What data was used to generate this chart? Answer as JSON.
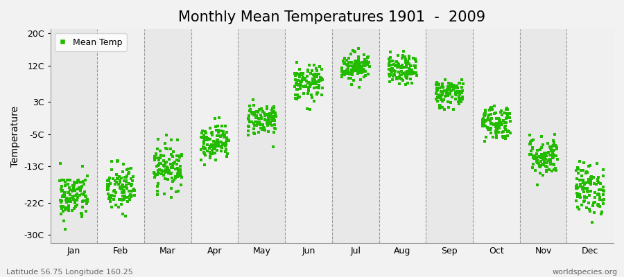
{
  "title": "Monthly Mean Temperatures 1901  -  2009",
  "ylabel": "Temperature",
  "xlabel_months": [
    "Jan",
    "Feb",
    "Mar",
    "Apr",
    "May",
    "Jun",
    "Jul",
    "Aug",
    "Sep",
    "Oct",
    "Nov",
    "Dec"
  ],
  "yticks": [
    -30,
    -22,
    -13,
    -5,
    3,
    12,
    20
  ],
  "ytick_labels": [
    "-30C",
    "-22C",
    "-13C",
    "-5C",
    "3C",
    "12C",
    "20C"
  ],
  "ylim": [
    -32,
    21
  ],
  "dot_color": "#22bb00",
  "dot_size": 7,
  "n_years": 109,
  "monthly_means": [
    -20.5,
    -18.5,
    -13.0,
    -6.8,
    -1.2,
    7.5,
    11.8,
    10.8,
    5.2,
    -2.0,
    -10.5,
    -18.5
  ],
  "monthly_stds": [
    3.0,
    3.2,
    2.8,
    2.2,
    2.0,
    2.2,
    1.8,
    1.8,
    1.8,
    2.2,
    2.5,
    3.2
  ],
  "background_color": "#f2f2f2",
  "plot_bg_color": "#ebebeb",
  "stripe_color_odd": "#e8e8e8",
  "stripe_color_even": "#f0f0f0",
  "vline_color": "#999999",
  "subtitle_left": "Latitude 56.75 Longitude 160.25",
  "subtitle_right": "worldspecies.org",
  "legend_label": "Mean Temp",
  "title_fontsize": 15,
  "axis_fontsize": 10,
  "tick_fontsize": 9,
  "subtitle_fontsize": 8
}
